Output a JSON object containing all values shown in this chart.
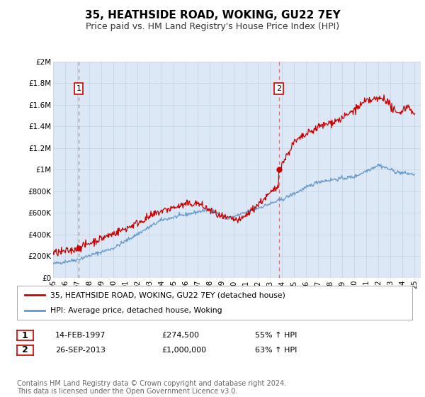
{
  "title": "35, HEATHSIDE ROAD, WOKING, GU22 7EY",
  "subtitle": "Price paid vs. HM Land Registry's House Price Index (HPI)",
  "title_fontsize": 11,
  "subtitle_fontsize": 9,
  "background_color": "#ffffff",
  "plot_bg_color": "#dce8f5",
  "grid_color": "#c8d8e8",
  "ylim": [
    0,
    2000000
  ],
  "xlim_start": 1995.0,
  "xlim_end": 2025.5,
  "yticks": [
    0,
    200000,
    400000,
    600000,
    800000,
    1000000,
    1200000,
    1400000,
    1600000,
    1800000,
    2000000
  ],
  "ytick_labels": [
    "£0",
    "£200K",
    "£400K",
    "£600K",
    "£800K",
    "£1M",
    "£1.2M",
    "£1.4M",
    "£1.6M",
    "£1.8M",
    "£2M"
  ],
  "xtick_values": [
    1995,
    1996,
    1997,
    1998,
    1999,
    2000,
    2001,
    2002,
    2003,
    2004,
    2005,
    2006,
    2007,
    2008,
    2009,
    2010,
    2011,
    2012,
    2013,
    2014,
    2015,
    2016,
    2017,
    2018,
    2019,
    2020,
    2021,
    2022,
    2023,
    2024,
    2025
  ],
  "xtick_labels": [
    "95",
    "96",
    "97",
    "98",
    "99",
    "00",
    "01",
    "02",
    "03",
    "04",
    "05",
    "06",
    "07",
    "08",
    "09",
    "10",
    "11",
    "12",
    "13",
    "14",
    "15",
    "16",
    "17",
    "18",
    "19",
    "20",
    "21",
    "22",
    "23",
    "24",
    "25"
  ],
  "transaction1_x": 1997.12,
  "transaction1_y": 274500,
  "transaction1_label": "1",
  "transaction2_x": 2013.73,
  "transaction2_y": 1000000,
  "transaction2_label": "2",
  "red_line_color": "#cc0000",
  "blue_line_color": "#6699cc",
  "marker_color": "#cc0000",
  "dashed_line_color": "#cc6666",
  "legend_label_red": "35, HEATHSIDE ROAD, WOKING, GU22 7EY (detached house)",
  "legend_label_blue": "HPI: Average price, detached house, Woking",
  "table_row1": [
    "1",
    "14-FEB-1997",
    "£274,500",
    "55% ↑ HPI"
  ],
  "table_row2": [
    "2",
    "26-SEP-2013",
    "£1,000,000",
    "63% ↑ HPI"
  ],
  "footnote": "Contains HM Land Registry data © Crown copyright and database right 2024.\nThis data is licensed under the Open Government Licence v3.0.",
  "footnote_fontsize": 7
}
